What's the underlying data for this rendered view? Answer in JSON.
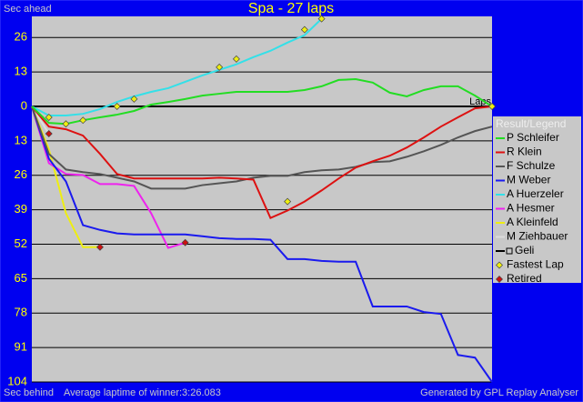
{
  "chart_data": {
    "type": "line",
    "title": "Spa - 27 laps",
    "y_label_top": "Sec ahead",
    "y_label_bottom": "Sec behind",
    "x_label": "Laps",
    "footer_left": "Average laptime of winner:3:26.083",
    "footer_right": "Generated by GPL Replay Analyser",
    "legend_title": "Result/Legend",
    "xlim": [
      0,
      27
    ],
    "ylim": [
      -104,
      34
    ],
    "yticks": [
      26,
      {
        "value": 13,
        "label": "13"
      },
      0,
      {
        "value": -13,
        "label": "13"
      },
      {
        "value": -26,
        "label": "26"
      },
      {
        "value": -39,
        "label": "39"
      },
      {
        "value": -52,
        "label": "52"
      },
      {
        "value": -65,
        "label": "65"
      },
      {
        "value": -78,
        "label": "78"
      },
      {
        "value": -91,
        "label": "91"
      },
      {
        "value": -104,
        "label": "104"
      }
    ],
    "grid": true,
    "x": [
      0,
      1,
      2,
      3,
      4,
      5,
      6,
      7,
      8,
      9,
      10,
      11,
      12,
      13,
      14,
      15,
      16,
      17,
      18,
      19,
      20,
      21,
      22,
      23,
      24,
      25,
      26,
      27
    ],
    "series": [
      {
        "name": "P Schleifer",
        "color": "#22dd22",
        "values": [
          0,
          -6.2,
          -6.6,
          -5.2,
          -4.1,
          -3.1,
          -1.7,
          0.7,
          1.7,
          2.8,
          4.1,
          4.8,
          5.5,
          5.5,
          5.5,
          5.5,
          6.2,
          7.6,
          10,
          10.3,
          9,
          5.2,
          3.8,
          6.2,
          7.6,
          7.6,
          4.1,
          0
        ]
      },
      {
        "name": "R Klein",
        "color": "#dd1111",
        "values": [
          0,
          -7.6,
          -8.6,
          -11,
          -17.9,
          -25.5,
          -27.2,
          -27.2,
          -27.2,
          -27.2,
          -27.2,
          -26.9,
          -27.2,
          -27.6,
          -42.1,
          -39.3,
          -35.9,
          -31.7,
          -27.2,
          -23.1,
          -20.7,
          -18.6,
          -15.5,
          -11.7,
          -7.6,
          -4.1,
          -0.7,
          0
        ]
      },
      {
        "name": "F Schulze",
        "color": "#555555",
        "values": [
          0,
          -17.9,
          -23.8,
          -24.8,
          -25.5,
          -26.9,
          -28.3,
          -31,
          -31,
          -31,
          -29.7,
          -29,
          -28.3,
          -26.9,
          -26.2,
          -26.2,
          -24.8,
          -24.1,
          -23.8,
          -22.8,
          -21,
          -20.7,
          -19,
          -16.9,
          -14.5,
          -11.7,
          -9.3,
          -7.6
        ]
      },
      {
        "name": "M Weber",
        "color": "#1a1aee",
        "values": [
          0,
          -19.7,
          -28.3,
          -44.8,
          -46.6,
          -47.9,
          -48.3,
          -48.3,
          -48.3,
          -48.3,
          -49,
          -49.7,
          -50,
          -50,
          -50.3,
          -57.6,
          -57.6,
          -58.3,
          -58.6,
          -58.6,
          -75.5,
          -75.5,
          -75.5,
          -77.6,
          -78.3,
          -93.8,
          -94.8,
          -104
        ]
      },
      {
        "name": "A Huerzeler",
        "color": "#33e0e8",
        "values": [
          0,
          -3.4,
          -3.4,
          -2.8,
          -1,
          1.7,
          3.8,
          5.5,
          6.9,
          9.3,
          11.7,
          13.8,
          15.9,
          18.6,
          21,
          24.1,
          26.9,
          33.1,
          null,
          null,
          null,
          null,
          null,
          null,
          null,
          null,
          null,
          null
        ]
      },
      {
        "name": "A Hesmer",
        "color": "#ee22ee",
        "values": [
          0,
          -21.4,
          -25.5,
          -25.9,
          -29.3,
          -29.3,
          -30,
          -40.3,
          -53.4,
          -51.4,
          null,
          null,
          null,
          null,
          null,
          null,
          null,
          null,
          null,
          null,
          null,
          null,
          null,
          null,
          null,
          null,
          null,
          null
        ]
      },
      {
        "name": "A Kleinfeld",
        "color": "#eeee11",
        "values": [
          0,
          -16.2,
          -40.3,
          -53.1,
          -53.1,
          null,
          null,
          null,
          null,
          null,
          null,
          null,
          null,
          null,
          null,
          null,
          null,
          null,
          null,
          null,
          null,
          null,
          null,
          null,
          null,
          null,
          null,
          null
        ]
      },
      {
        "name": "M Ziehbauer",
        "color": "#dddddd",
        "values": [
          0,
          -10.3,
          null,
          null,
          null,
          null,
          null,
          null,
          null,
          null,
          null,
          null,
          null,
          null,
          null,
          null,
          null,
          null,
          null,
          null,
          null,
          null,
          null,
          null,
          null,
          null,
          null,
          null
        ]
      },
      {
        "name": "Geli",
        "color": "#000000",
        "values": [
          0,
          0,
          0,
          0,
          0,
          0,
          0,
          0,
          0,
          0,
          0,
          0,
          0,
          0,
          0,
          0,
          0,
          0,
          0,
          0,
          0,
          0,
          0,
          0,
          0,
          0,
          0,
          0
        ]
      }
    ],
    "markers": [
      {
        "name": "Fastest Lap",
        "color": "#eeee11",
        "x": [
          1,
          2,
          3,
          5,
          6,
          11,
          12,
          15,
          16,
          17,
          27
        ],
        "values": [
          -4.1,
          -6.6,
          -5.2,
          0,
          2.8,
          14.8,
          17.9,
          -35.9,
          29,
          33.1,
          0
        ]
      },
      {
        "name": "Retired",
        "color": "#cc1111",
        "x": [
          1,
          4,
          9
        ],
        "values": [
          -10.3,
          -53.1,
          -51.4
        ]
      }
    ]
  }
}
